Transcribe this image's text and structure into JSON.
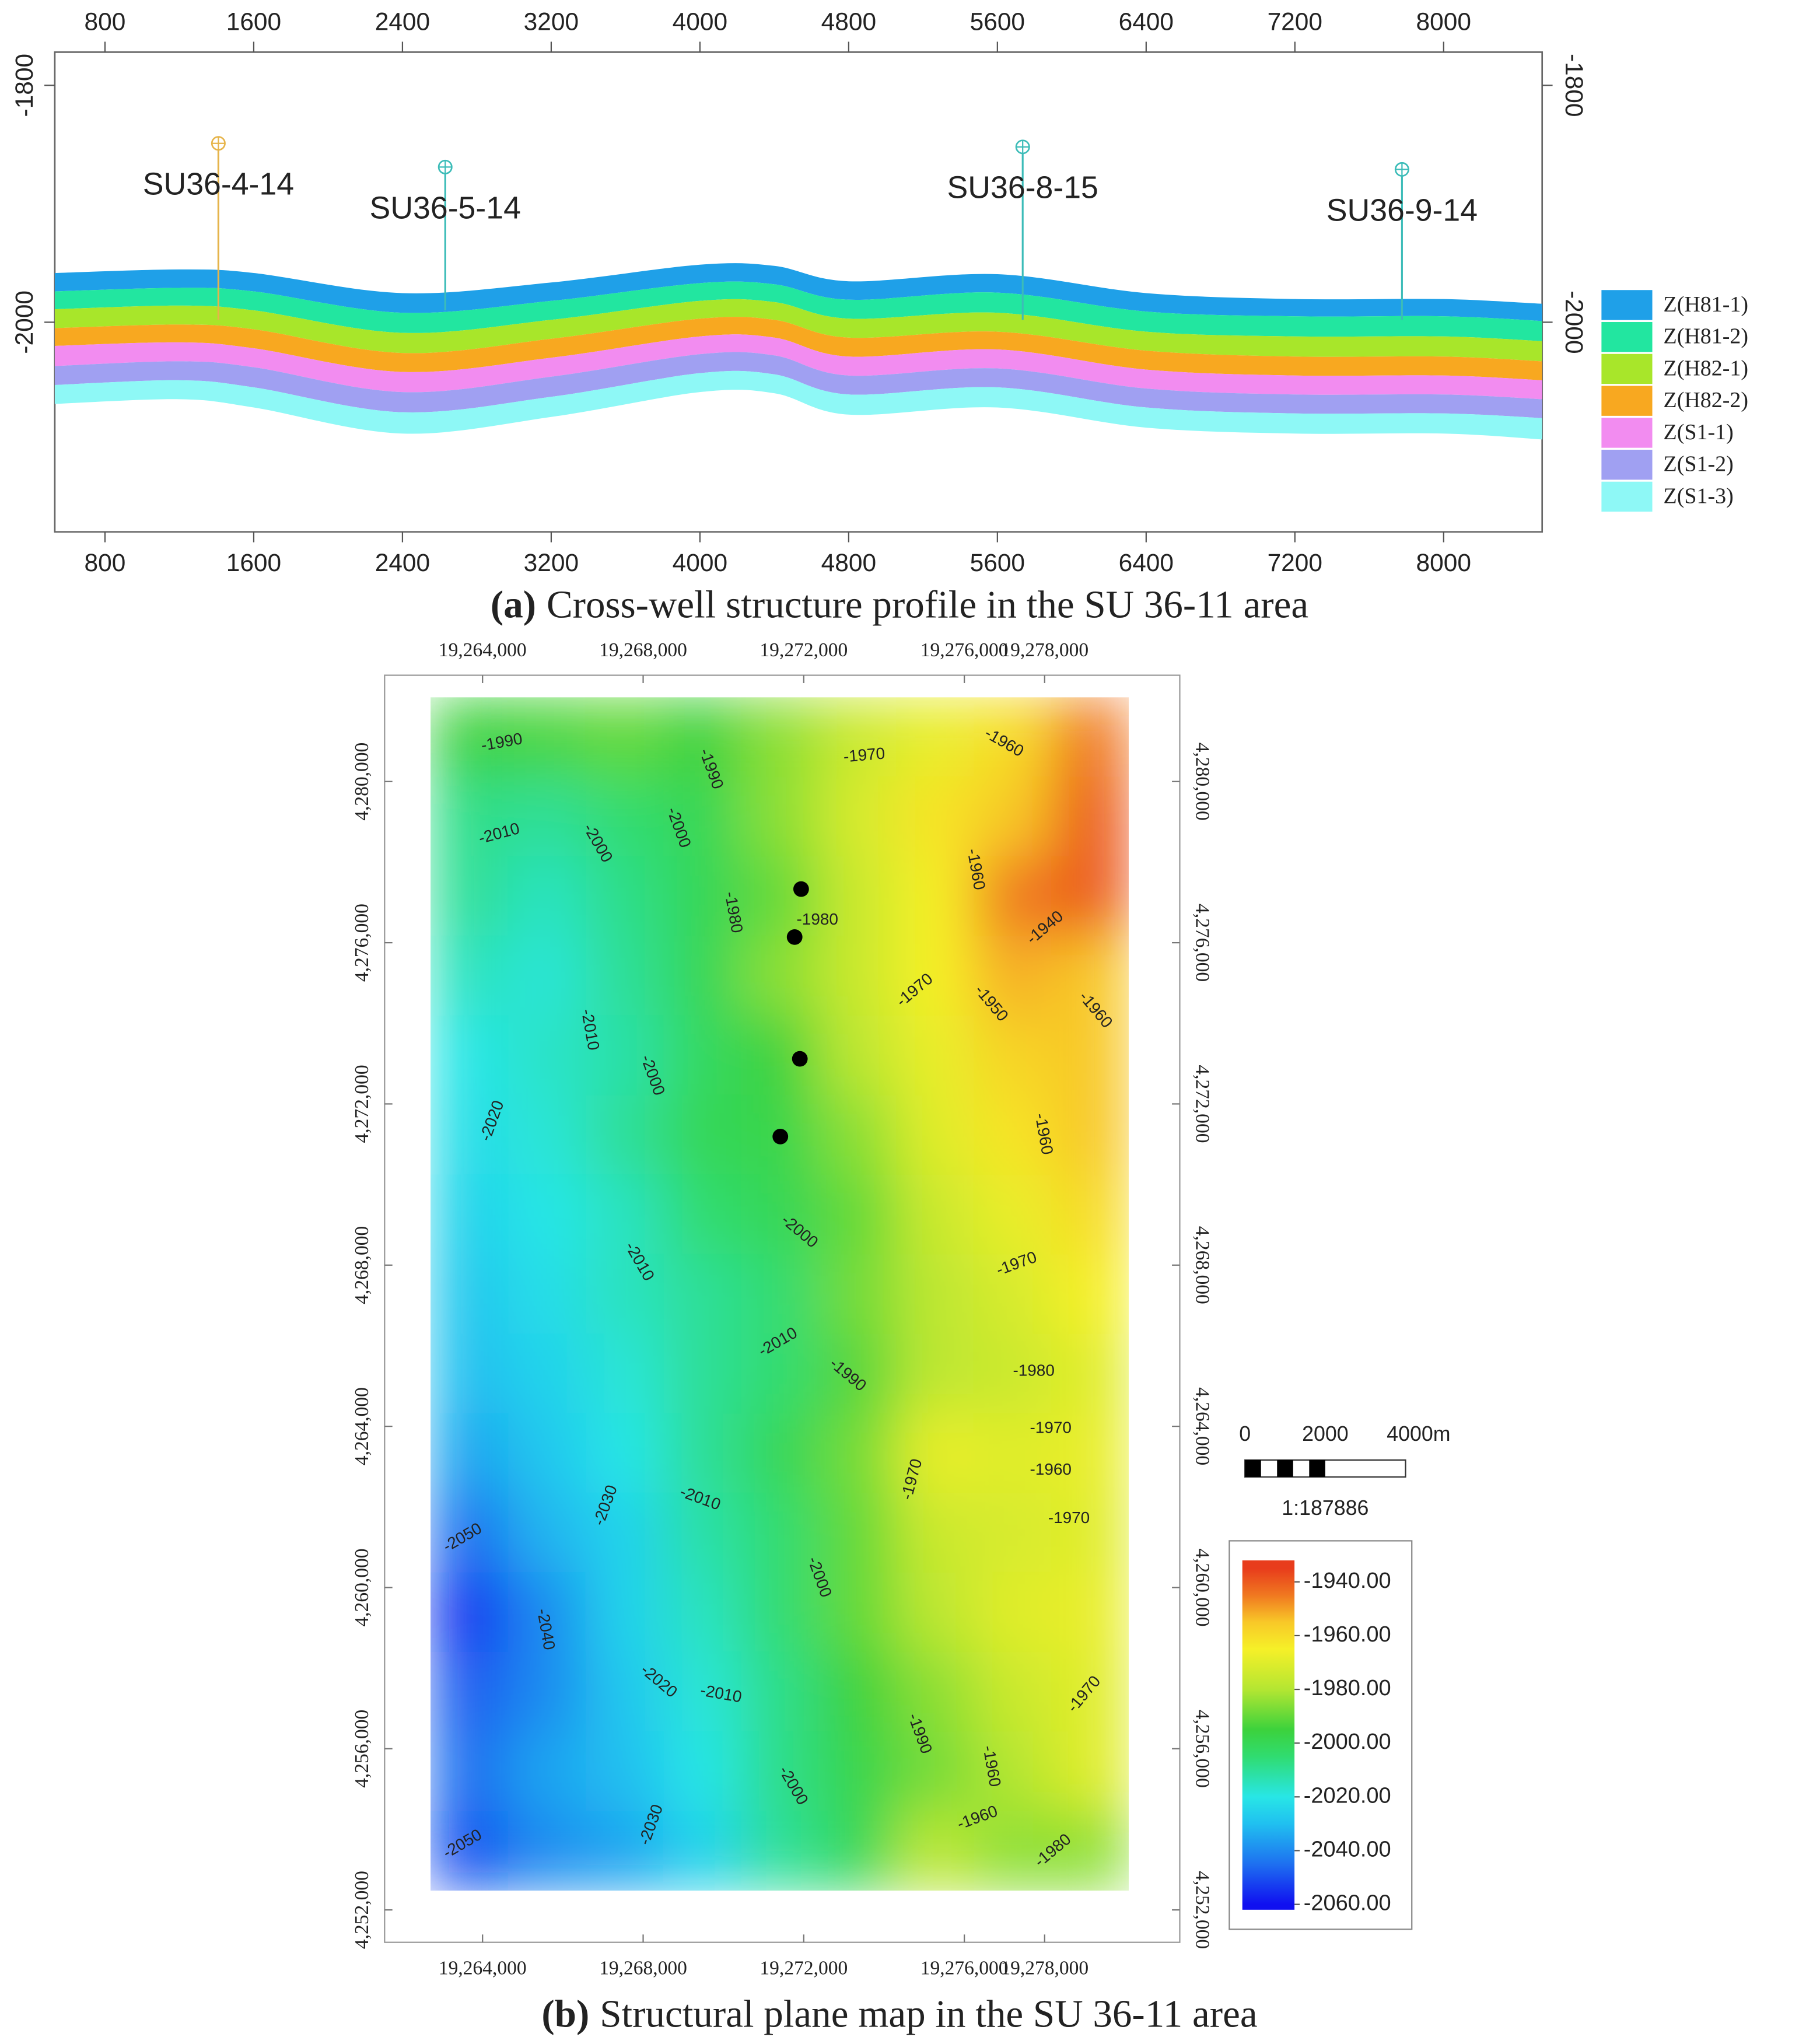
{
  "chart_data": [
    {
      "type": "area",
      "caption_label": "(a)",
      "caption": "Cross-well structure profile in the SU 36-11 area",
      "x": [
        530,
        1200,
        1600,
        2400,
        3200,
        4000,
        4400,
        4800,
        5600,
        6400,
        7200,
        8000,
        8530
      ],
      "surface": [
        -1959,
        -1956,
        -1959,
        -1976,
        -1967,
        -1952,
        -1953,
        -1966,
        -1960,
        -1976,
        -1981,
        -1981,
        -1985
      ],
      "series": [
        {
          "name": "Z(H81-1)",
          "color": "#1fa0e8",
          "values": [
            15,
            15,
            15,
            16,
            15,
            15,
            15,
            15,
            15,
            15,
            14,
            14,
            14
          ]
        },
        {
          "name": "Z(H81-2)",
          "color": "#22e6a0",
          "values": [
            15,
            15,
            16,
            17,
            16,
            15,
            15,
            16,
            17,
            17,
            17,
            17,
            17
          ]
        },
        {
          "name": "Z(H82-1)",
          "color": "#a8e62a",
          "values": [
            16,
            16,
            16,
            17,
            16,
            15,
            15,
            16,
            16,
            16,
            17,
            17,
            17
          ]
        },
        {
          "name": "Z(H82-2)",
          "color": "#f8a820",
          "values": [
            15,
            15,
            16,
            16,
            16,
            15,
            15,
            16,
            15,
            16,
            16,
            16,
            16
          ]
        },
        {
          "name": "Z(S1-1)",
          "color": "#f28cf0",
          "values": [
            17,
            16,
            16,
            17,
            16,
            15,
            15,
            16,
            16,
            16,
            16,
            16,
            16
          ]
        },
        {
          "name": "Z(S1-2)",
          "color": "#a0a0f2",
          "values": [
            16,
            16,
            17,
            17,
            17,
            16,
            16,
            16,
            16,
            16,
            16,
            16,
            16
          ]
        },
        {
          "name": "Z(S1-3)",
          "color": "#8ef8f6",
          "values": [
            16,
            16,
            17,
            18,
            17,
            16,
            16,
            17,
            17,
            17,
            17,
            17,
            18
          ]
        }
      ],
      "wells": [
        {
          "name": "SU36-4-14",
          "x": 1410,
          "top": -1849,
          "bottom": -1998,
          "color": "#e6b44a"
        },
        {
          "name": "SU36-5-14",
          "x": 2630,
          "top": -1869,
          "bottom": -1990,
          "color": "#3cbcb8"
        },
        {
          "name": "SU36-8-15",
          "x": 5736,
          "top": -1852,
          "bottom": -1998,
          "color": "#3cbcb8"
        },
        {
          "name": "SU36-9-14",
          "x": 7776,
          "top": -1871,
          "bottom": -1998,
          "color": "#3cbcb8"
        }
      ],
      "xlim": [
        530,
        8530
      ],
      "ylim": [
        -2177,
        -1772
      ],
      "xticks": [
        800,
        1600,
        2400,
        3200,
        4000,
        4800,
        5600,
        6400,
        7200,
        8000
      ],
      "yticks": [
        -1800,
        -2000
      ],
      "legend": "right"
    },
    {
      "type": "contour",
      "caption_label": "(b)",
      "caption": "Structural plane map in the SU 36-11 area",
      "x": [
        19263670,
        19265600,
        19267530,
        19269470,
        19271400,
        19273330,
        19275270,
        19277200,
        19279130
      ],
      "y": [
        4281103,
        4279129,
        4277155,
        4275181,
        4273207,
        4271233,
        4269259,
        4267285,
        4265311,
        4263337,
        4261363,
        4259389,
        4257415,
        4255441,
        4253467
      ],
      "z": [
        [
          -1995,
          -1993,
          -1990,
          -1995,
          -1985,
          -1975,
          -1968,
          -1960,
          -1945
        ],
        [
          -2008,
          -2010,
          -2005,
          -2000,
          -1985,
          -1972,
          -1962,
          -1955,
          -1940
        ],
        [
          -2010,
          -2015,
          -2008,
          -2000,
          -1990,
          -1975,
          -1965,
          -1945,
          -1940
        ],
        [
          -2015,
          -2018,
          -2010,
          -2000,
          -1985,
          -1975,
          -1965,
          -1952,
          -1955
        ],
        [
          -2020,
          -2016,
          -2012,
          -2002,
          -1995,
          -1978,
          -1968,
          -1958,
          -1955
        ],
        [
          -2022,
          -2018,
          -2010,
          -2000,
          -1998,
          -1985,
          -1970,
          -1962,
          -1955
        ],
        [
          -2025,
          -2020,
          -2015,
          -2005,
          -2000,
          -1990,
          -1975,
          -1968,
          -1960
        ],
        [
          -2028,
          -2022,
          -2015,
          -2010,
          -2005,
          -1988,
          -1978,
          -1972,
          -1965
        ],
        [
          -2030,
          -2025,
          -2018,
          -2010,
          -2005,
          -1992,
          -1978,
          -1975,
          -1970
        ],
        [
          -2035,
          -2028,
          -2020,
          -2010,
          -2000,
          -1988,
          -1968,
          -1970,
          -1968
        ],
        [
          -2045,
          -2032,
          -2025,
          -2012,
          -2005,
          -1990,
          -1975,
          -1972,
          -1970
        ],
        [
          -2055,
          -2040,
          -2025,
          -2015,
          -2005,
          -1990,
          -1978,
          -1970,
          -1968
        ],
        [
          -2048,
          -2040,
          -2028,
          -2018,
          -2008,
          -1995,
          -1985,
          -1975,
          -1970
        ],
        [
          -2045,
          -2035,
          -2030,
          -2020,
          -2008,
          -1998,
          -1988,
          -1980,
          -1970
        ],
        [
          -2050,
          -2040,
          -2035,
          -2025,
          -2010,
          -2000,
          -1978,
          -1985,
          -1985
        ]
      ],
      "xlim": [
        19261560,
        19281366
      ],
      "ylim": [
        4251196,
        4282637
      ],
      "xticks": [
        {
          "value": 19264000,
          "label": "19,264,000"
        },
        {
          "value": 19268000,
          "label": "19,268,000"
        },
        {
          "value": 19272000,
          "label": "19,272,000"
        },
        {
          "value": 19276000,
          "label": "19,276,000"
        },
        {
          "value": 19278000,
          "label": "19,278,000"
        }
      ],
      "yticks": [
        {
          "value": 4252000,
          "label": "4,252,000"
        },
        {
          "value": 4256000,
          "label": "4,256,000"
        },
        {
          "value": 4260000,
          "label": "4,260,000"
        },
        {
          "value": 4264000,
          "label": "4,264,000"
        },
        {
          "value": 4268000,
          "label": "4,268,000"
        },
        {
          "value": 4272000,
          "label": "4,272,000"
        },
        {
          "value": 4276000,
          "label": "4,276,000"
        },
        {
          "value": 4280000,
          "label": "4,280,000"
        }
      ],
      "colorscale": [
        [
          -2060,
          "#1010f0"
        ],
        [
          -2045,
          "#1e70f0"
        ],
        [
          -2030,
          "#20c0f0"
        ],
        [
          -2020,
          "#28e6e6"
        ],
        [
          -2005,
          "#30dc70"
        ],
        [
          -1995,
          "#3cd23c"
        ],
        [
          -1980,
          "#b4e632"
        ],
        [
          -1965,
          "#f6f028"
        ],
        [
          -1955,
          "#f8c828"
        ],
        [
          -1945,
          "#f07820"
        ],
        [
          -1935,
          "#e83c1c"
        ]
      ],
      "colorbar": {
        "lim": [
          -2062,
          -1932
        ],
        "ticks": [
          {
            "value": -1940,
            "label": "-1940.00"
          },
          {
            "value": -1960,
            "label": "-1960.00"
          },
          {
            "value": -1980,
            "label": "-1980.00"
          },
          {
            "value": -2000,
            "label": "-2000.00"
          },
          {
            "value": -2020,
            "label": "-2020.00"
          },
          {
            "value": -2040,
            "label": "-2040.00"
          },
          {
            "value": -2060,
            "label": "-2060.00"
          }
        ]
      },
      "wells": {
        "x": [
          19271935,
          19271773,
          19271903,
          19271417
        ],
        "y": [
          4277331,
          4276141,
          4273119,
          4271190
        ]
      },
      "contour_labels": [
        -1990,
        -1990,
        -1970,
        -1960,
        -2010,
        -2000,
        -2000,
        -1960,
        -1980,
        -1980,
        -1940,
        -1970,
        -1950,
        -1960,
        -2010,
        -2000,
        -2020,
        -1960,
        -2000,
        -2010,
        -1970,
        -2010,
        -1990,
        -1980,
        -1970,
        -1970,
        -1960,
        -2030,
        -2010,
        -1970,
        -2050,
        -2000,
        -2040,
        -2020,
        -2010,
        -1970,
        -1990,
        -1960,
        -2000,
        -2030,
        -1960,
        -2050,
        -1980
      ],
      "scale_bar": {
        "ticks": [
          0,
          2000
        ],
        "end": {
          "value": 4000,
          "label": "4000m"
        },
        "ratio": "1:187886"
      }
    }
  ]
}
